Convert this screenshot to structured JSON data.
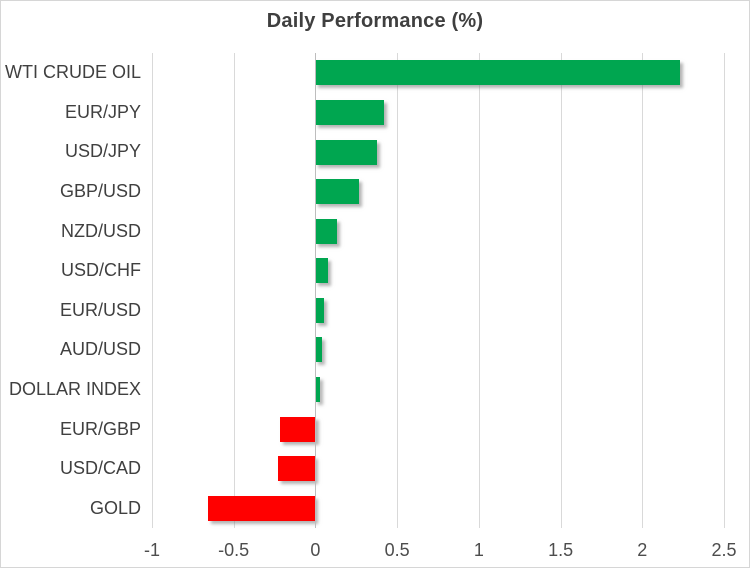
{
  "chart_data": {
    "type": "bar",
    "orientation": "horizontal",
    "title": "Daily Performance (%)",
    "categories": [
      "WTI CRUDE OIL",
      "EUR/JPY",
      "USD/JPY",
      "GBP/USD",
      "NZD/USD",
      "USD/CHF",
      "EUR/USD",
      "AUD/USD",
      "DOLLAR INDEX",
      "EUR/GBP",
      "USD/CAD",
      "GOLD"
    ],
    "values": [
      2.23,
      0.42,
      0.38,
      0.27,
      0.13,
      0.08,
      0.05,
      0.04,
      0.03,
      -0.22,
      -0.23,
      -0.66
    ],
    "xlim": [
      -1,
      2.5
    ],
    "xticks": [
      -1,
      -0.5,
      0,
      0.5,
      1,
      1.5,
      2,
      2.5
    ],
    "xtick_labels": [
      "-1",
      "-0.5",
      "0",
      "0.5",
      "1",
      "1.5",
      "2",
      "2.5"
    ],
    "grid": "vertical-gridlines-on",
    "legend": "none",
    "data_labels": "none",
    "colors": {
      "positive_bar": "#00a650",
      "negative_bar": "#ff0000",
      "gridline": "#d9d9d9",
      "zero_axis_line": "#bdbdbd",
      "title_text": "#3f3f3f",
      "category_text": "#404040",
      "tick_text": "#4d4d4d",
      "chart_border": "#d6d6d6",
      "background": "#ffffff"
    }
  }
}
